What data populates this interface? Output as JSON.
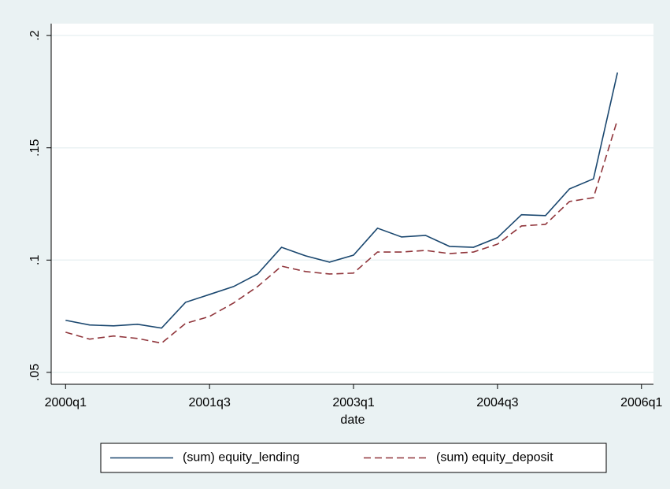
{
  "chart_data": {
    "type": "line",
    "x_label": "date",
    "x": [
      160,
      161,
      162,
      163,
      164,
      165,
      166,
      167,
      168,
      169,
      170,
      171,
      172,
      173,
      174,
      175,
      176,
      177,
      178,
      179,
      180,
      181,
      182,
      183
    ],
    "xlim": [
      159.4,
      184.5
    ],
    "xticks": [
      {
        "value": 160,
        "label": "2000q1"
      },
      {
        "value": 166,
        "label": "2001q3"
      },
      {
        "value": 172,
        "label": "2003q1"
      },
      {
        "value": 178,
        "label": "2004q3"
      },
      {
        "value": 184,
        "label": "2006q1"
      }
    ],
    "ylim": [
      0.0447,
      0.2053
    ],
    "yticks": [
      {
        "value": 0.05,
        "label": ".05"
      },
      {
        "value": 0.1,
        "label": ".1"
      },
      {
        "value": 0.15,
        "label": ".15"
      },
      {
        "value": 0.2,
        "label": ".2"
      }
    ],
    "grid": true,
    "legend_position": "bottom",
    "series": [
      {
        "name": "(sum) equity_lending",
        "color": "#1a476f",
        "style": "solid",
        "values": [
          0.0732,
          0.0711,
          0.0707,
          0.0714,
          0.0697,
          0.0812,
          0.0847,
          0.0882,
          0.0938,
          0.1057,
          0.1019,
          0.0991,
          0.1022,
          0.1142,
          0.1103,
          0.111,
          0.1061,
          0.1057,
          0.11,
          0.1202,
          0.1198,
          0.1317,
          0.1362,
          0.1835
        ]
      },
      {
        "name": "(sum) equity_deposit",
        "color": "#90353b",
        "style": "dashed",
        "values": [
          0.0679,
          0.0648,
          0.0662,
          0.0651,
          0.063,
          0.0718,
          0.0749,
          0.0809,
          0.0882,
          0.0973,
          0.0949,
          0.0938,
          0.0942,
          0.1036,
          0.1036,
          0.1043,
          0.1029,
          0.1036,
          0.1071,
          0.1152,
          0.1159,
          0.1261,
          0.1278,
          0.1625
        ]
      }
    ]
  }
}
